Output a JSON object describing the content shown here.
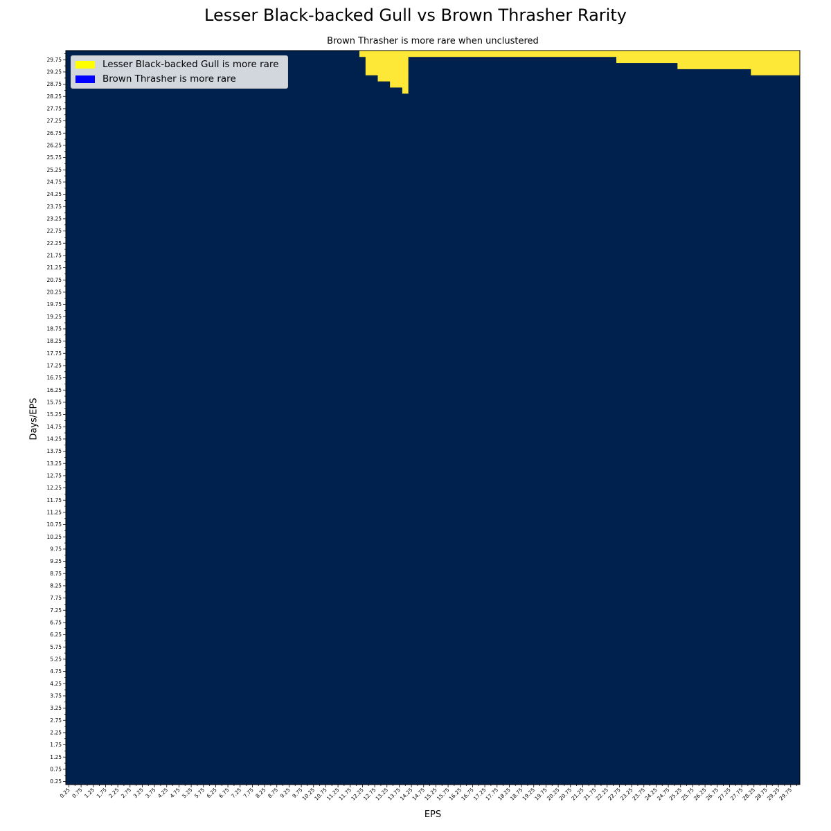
{
  "chart_data": {
    "type": "heatmap",
    "title": "Lesser Black-backed Gull vs Brown Thrasher Rarity",
    "subtitle": "Brown Thrasher is more rare when unclustered",
    "xlabel": "EPS",
    "ylabel": "Days/EPS",
    "x_start": 0.25,
    "x_step": 0.25,
    "x_count": 120,
    "y_start": 0.25,
    "y_step": 0.25,
    "y_count": 120,
    "tick_every": 2,
    "tick_labels": [
      "0.25",
      "0.75",
      "1.25",
      "1.75",
      "2.25",
      "2.75",
      "3.25",
      "3.75",
      "4.25",
      "4.75",
      "5.25",
      "5.75",
      "6.25",
      "6.75",
      "7.25",
      "7.75",
      "8.25",
      "8.75",
      "9.25",
      "9.75",
      "10.25",
      "10.75",
      "11.25",
      "11.75",
      "12.25",
      "12.75",
      "13.25",
      "13.75",
      "14.25",
      "14.75",
      "15.25",
      "15.75",
      "16.25",
      "16.75",
      "17.25",
      "17.75",
      "18.25",
      "18.75",
      "19.25",
      "19.75",
      "20.25",
      "20.75",
      "21.25",
      "21.75",
      "22.25",
      "22.75",
      "23.25",
      "23.75",
      "24.25",
      "24.75",
      "25.25",
      "25.75",
      "26.25",
      "26.75",
      "27.25",
      "27.75",
      "28.25",
      "28.75",
      "29.25",
      "29.75"
    ],
    "value_meaning": {
      "0": "Brown Thrasher is more rare",
      "1": "Lesser Black-backed Gull is more rare"
    },
    "default_value": 0,
    "yellow_regions": [
      {
        "x_from": 12.25,
        "x_to": 12.5,
        "y_from": 30.0,
        "y_to": 30.0
      },
      {
        "x_from": 12.5,
        "x_to": 12.75,
        "y_from": 29.25,
        "y_to": 30.0
      },
      {
        "x_from": 13.0,
        "x_to": 13.25,
        "y_from": 29.0,
        "y_to": 30.0
      },
      {
        "x_from": 13.5,
        "x_to": 13.75,
        "y_from": 28.75,
        "y_to": 30.0
      },
      {
        "x_from": 14.0,
        "x_to": 14.0,
        "y_from": 28.5,
        "y_to": 30.0
      },
      {
        "x_from": 14.25,
        "x_to": 22.5,
        "y_from": 30.0,
        "y_to": 30.0
      },
      {
        "x_from": 22.75,
        "x_to": 25.0,
        "y_from": 29.75,
        "y_to": 30.0
      },
      {
        "x_from": 25.25,
        "x_to": 28.0,
        "y_from": 29.5,
        "y_to": 30.0
      },
      {
        "x_from": 28.25,
        "x_to": 30.0,
        "y_from": 29.25,
        "y_to": 30.0
      }
    ],
    "colors": {
      "more_rare_gull": "#fde838",
      "more_rare_thrasher": "#00204d"
    },
    "legend": {
      "placement": "upper-left",
      "items": [
        {
          "label": "Lesser Black-backed Gull is more rare",
          "color": "#ffff00"
        },
        {
          "label": "Brown Thrasher is more rare",
          "color": "#0000ff"
        }
      ]
    }
  }
}
